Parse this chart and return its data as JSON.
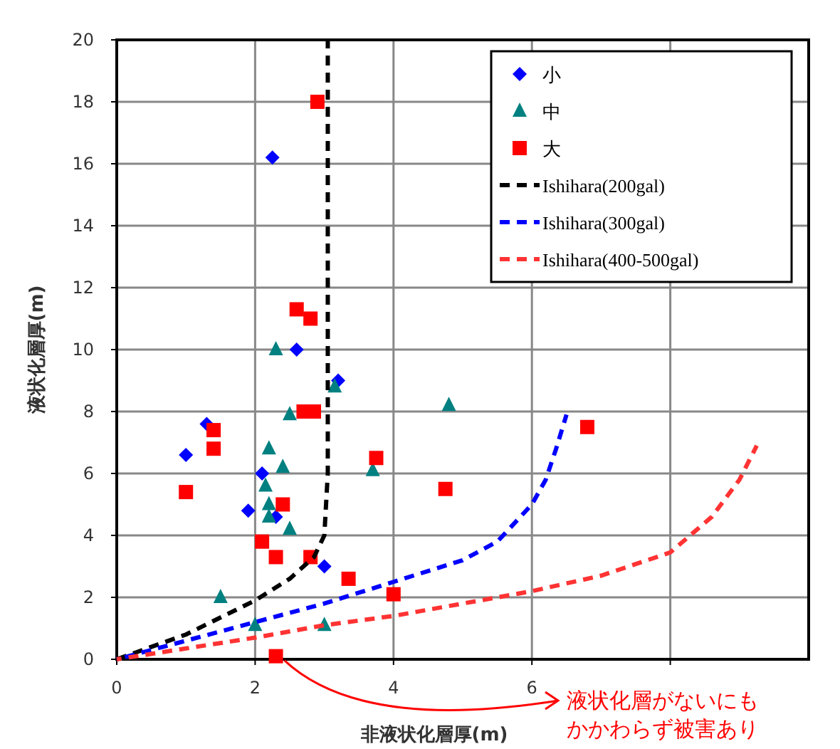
{
  "chart_data": {
    "type": "scatter",
    "xlabel": "非液状化層厚(m)",
    "ylabel": "液状化層厚(m)",
    "xlim": [
      0,
      10
    ],
    "ylim": [
      0,
      20
    ],
    "xticks": [
      0,
      2,
      4,
      6,
      {
        "value": 8,
        "label": null
      }
    ],
    "yticks": [
      0,
      2,
      4,
      6,
      8,
      10,
      12,
      14,
      16,
      18,
      20
    ],
    "grid": true,
    "legend": "top right",
    "series": [
      {
        "name": "小",
        "marker": "diamond",
        "color": "#0000ff",
        "x": [
          2.25,
          2.6,
          3.2,
          1.3,
          1.0,
          2.1,
          1.9,
          2.3,
          3.0
        ],
        "values": [
          16.2,
          10.0,
          9.0,
          7.6,
          6.6,
          6.0,
          4.8,
          4.6,
          3.0
        ]
      },
      {
        "name": "中",
        "marker": "triangle",
        "color": "#008080",
        "x": [
          2.3,
          3.15,
          4.8,
          2.5,
          2.2,
          2.4,
          3.7,
          2.15,
          2.2,
          2.2,
          2.5,
          1.5,
          2.0,
          3.0
        ],
        "values": [
          10.0,
          8.8,
          8.2,
          7.9,
          6.8,
          6.2,
          6.1,
          5.6,
          5.0,
          4.6,
          4.2,
          2.0,
          1.1,
          1.1
        ]
      },
      {
        "name": "大",
        "marker": "square",
        "color": "#ff0000",
        "x": [
          2.9,
          2.6,
          2.8,
          2.7,
          2.85,
          1.4,
          1.4,
          3.75,
          4.75,
          6.8,
          1.0,
          2.4,
          2.1,
          2.3,
          2.8,
          3.35,
          4.0,
          2.3
        ],
        "values": [
          18.0,
          11.3,
          11.0,
          8.0,
          8.0,
          7.4,
          6.8,
          6.5,
          5.5,
          7.5,
          5.4,
          5.0,
          3.8,
          3.3,
          3.3,
          2.6,
          2.1,
          0.1
        ]
      },
      {
        "name": "Ishihara(200gal)",
        "type": "line",
        "marker": "none",
        "line_style": "dashed",
        "color": "#000000",
        "x": [
          0,
          1,
          2,
          2.5,
          2.85,
          3.0,
          3.05,
          3.05,
          3.05
        ],
        "values": [
          0,
          0.8,
          1.9,
          2.6,
          3.3,
          4.0,
          6.0,
          10.0,
          20.0
        ]
      },
      {
        "name": "Ishihara(300gal)",
        "type": "line",
        "marker": "none",
        "line_style": "dashed",
        "color": "#0000ff",
        "x": [
          0,
          1,
          2,
          3,
          4,
          5,
          5.5,
          6.0,
          6.2,
          6.35,
          6.5
        ],
        "values": [
          0,
          0.6,
          1.2,
          1.8,
          2.5,
          3.2,
          3.8,
          5.0,
          5.8,
          6.8,
          7.9
        ]
      },
      {
        "name": "Ishihara(400-500gal)",
        "type": "line",
        "marker": "none",
        "line_style": "dashed",
        "color": "#ff3333",
        "x": [
          0,
          1,
          2,
          3,
          4,
          5,
          6,
          7,
          8,
          8.6,
          9.0,
          9.25
        ],
        "values": [
          0,
          0.35,
          0.7,
          1.1,
          1.4,
          1.8,
          2.2,
          2.7,
          3.45,
          4.6,
          5.8,
          6.9
        ]
      }
    ],
    "annotations": [
      {
        "text": "液状化層がないにもかかわらず被害あり",
        "x": 2.3,
        "y": 0.1
      }
    ]
  }
}
